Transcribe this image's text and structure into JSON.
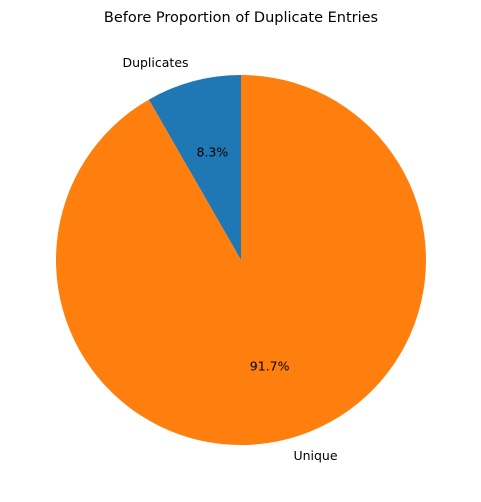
{
  "chart_data": {
    "type": "pie",
    "title": "Before Proportion of Duplicate Entries",
    "start_angle_deg": 90,
    "direction": "counterclockwise",
    "slices": [
      {
        "label": "Duplicates",
        "value": 8.3,
        "pct_label": "8.3%",
        "color": "#1f77b4"
      },
      {
        "label": "Unique",
        "value": 91.7,
        "pct_label": "91.7%",
        "color": "#ff7f0e"
      }
    ],
    "legend": false
  }
}
